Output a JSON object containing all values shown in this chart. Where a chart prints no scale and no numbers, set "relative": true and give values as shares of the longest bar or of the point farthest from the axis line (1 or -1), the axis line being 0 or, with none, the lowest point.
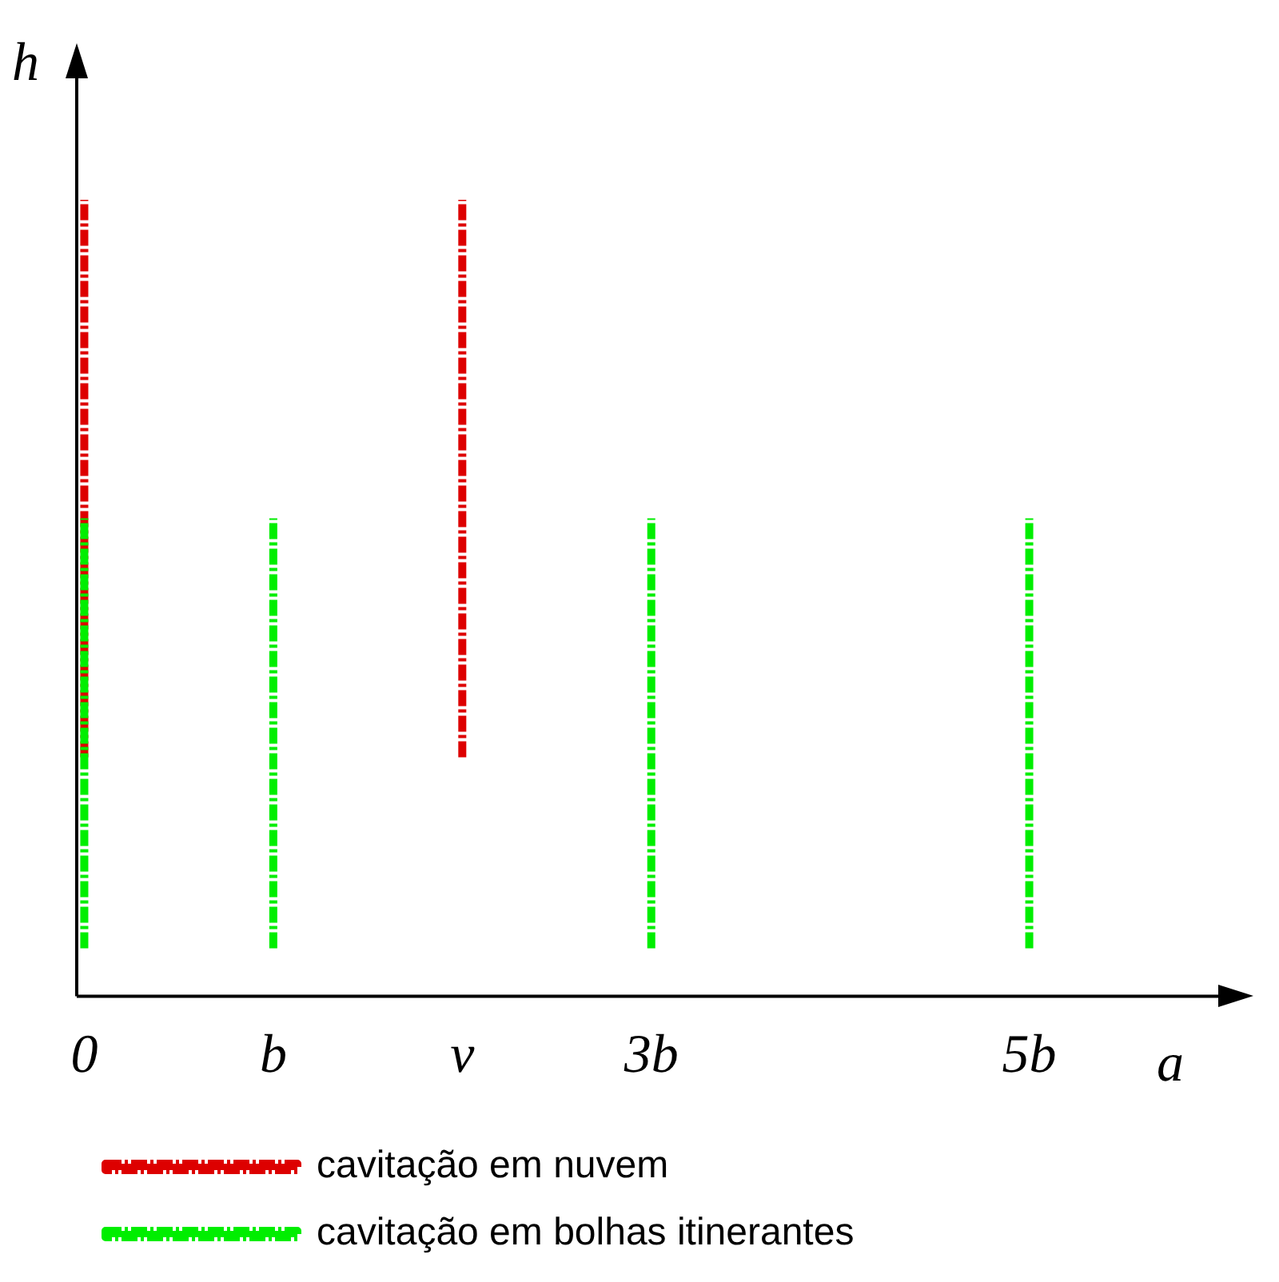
{
  "chart_data": {
    "type": "line",
    "relative": true,
    "xlabel": "a",
    "ylabel": "h",
    "xlim": [
      -0.04,
      6
    ],
    "xticks": [
      0,
      {
        "value": 1,
        "label": "b"
      },
      {
        "value": 2,
        "label": "v"
      },
      {
        "value": 3,
        "label": "3b"
      },
      {
        "value": 5,
        "label": "5b"
      }
    ],
    "legend": "bottom",
    "line_style": "dashed",
    "marker": "none",
    "series": [
      {
        "name": "cavitação em nuvem",
        "color": "#dd0000",
        "x": [
          0,
          0
        ],
        "values": [
          0.3,
          1
        ]
      },
      {
        "color": "#dd0000",
        "x": [
          2,
          2
        ],
        "values": [
          0.3,
          1
        ]
      },
      {
        "name": "cavitação em bolhas itinerantes",
        "color": "#00ee00",
        "x": [
          0,
          0
        ],
        "values": [
          0.06,
          0.6
        ]
      },
      {
        "color": "#00ee00",
        "x": [
          1,
          1
        ],
        "values": [
          0.06,
          0.6
        ]
      },
      {
        "color": "#00ee00",
        "x": [
          3,
          3
        ],
        "values": [
          0.06,
          0.6
        ]
      },
      {
        "color": "#00ee00",
        "x": [
          5,
          5
        ],
        "values": [
          0.06,
          0.6
        ]
      }
    ]
  }
}
